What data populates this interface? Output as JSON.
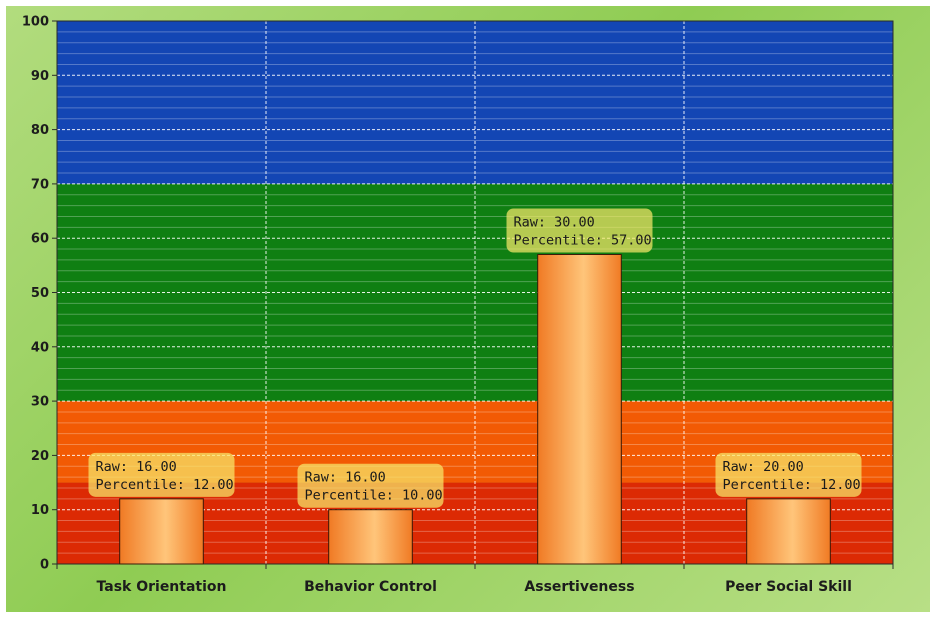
{
  "chart_data": {
    "type": "bar",
    "categories": [
      "Task Orientation",
      "Behavior Control",
      "Assertiveness",
      "Peer Social Skill"
    ],
    "values": [
      12,
      10,
      57,
      12
    ],
    "raw": [
      16,
      16,
      30,
      20
    ],
    "data_labels": [
      {
        "line1": "Raw: 16.00",
        "line2": "Percentile: 12.00"
      },
      {
        "line1": "Raw: 16.00",
        "line2": "Percentile: 10.00"
      },
      {
        "line1": "Raw: 30.00",
        "line2": "Percentile: 57.00"
      },
      {
        "line1": "Raw: 20.00",
        "line2": "Percentile: 12.00"
      }
    ],
    "ylim": [
      0,
      100
    ],
    "yticks": [
      "0",
      "10",
      "20",
      "30",
      "40",
      "50",
      "60",
      "70",
      "80",
      "90",
      "100"
    ],
    "title": "",
    "xlabel": "",
    "ylabel": "",
    "grid": true,
    "bands": [
      {
        "from": 0,
        "to": 15,
        "color": "#dc2a04"
      },
      {
        "from": 15,
        "to": 30,
        "color": "#f25a04"
      },
      {
        "from": 30,
        "to": 70,
        "color": "#0f7f12"
      },
      {
        "from": 70,
        "to": 100,
        "color": "#1346b4"
      }
    ],
    "colors": {
      "bar_light": "#ffc57a",
      "bar_dark": "#f07a24",
      "bar_outline": "#3a1a08",
      "label_box": "#f7e86a"
    }
  }
}
